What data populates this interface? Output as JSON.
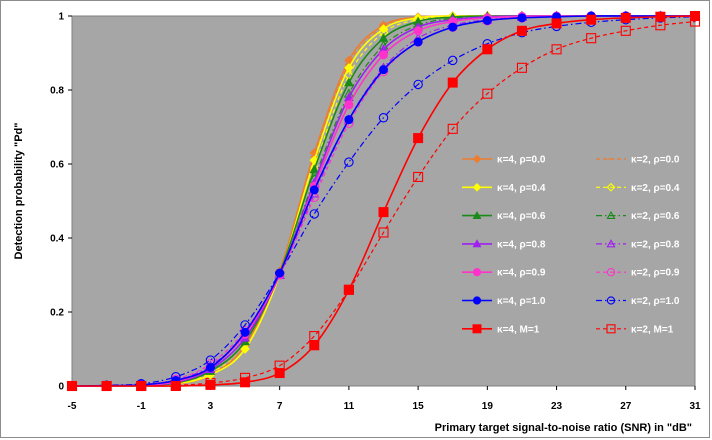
{
  "chart_data": {
    "type": "line",
    "xlabel": "Primary target signal-to-noise  ratio (SNR) in \"dB\"",
    "ylabel": "Detection probability \"Pd\"",
    "xlim": [
      -5,
      31
    ],
    "ylim": [
      0,
      1
    ],
    "xticks": [
      "-5",
      "-1",
      "3",
      "7",
      "11",
      "15",
      "19",
      "23",
      "27",
      "31"
    ],
    "yticks": [
      "0",
      "0.2",
      "0.4",
      "0.6",
      "0.8",
      "1"
    ],
    "grid": false,
    "plot_background": "#a6a6a6",
    "legend_placement": "right",
    "x": [
      -5,
      -3,
      -1,
      1,
      3,
      5,
      7,
      9,
      11,
      13,
      15,
      17,
      19,
      21,
      23,
      25,
      27,
      29,
      31
    ],
    "series": [
      {
        "name": "κ=4, ρ=0.0",
        "color": "#ed7d31",
        "marker": "diamond",
        "filled": true,
        "dash": "solid",
        "values": [
          0,
          0,
          0.001,
          0.005,
          0.03,
          0.11,
          0.31,
          0.63,
          0.88,
          0.975,
          0.997,
          1,
          1,
          1,
          1,
          1,
          1,
          1,
          1
        ]
      },
      {
        "name": "κ=2, ρ=0.0",
        "color": "#ed7d31",
        "marker": "line",
        "filled": false,
        "dash": "dash",
        "values": [
          0,
          0,
          0.001,
          0.005,
          0.03,
          0.11,
          0.31,
          0.62,
          0.87,
          0.97,
          0.996,
          1,
          1,
          1,
          1,
          1,
          1,
          1,
          1
        ]
      },
      {
        "name": "κ=4, ρ=0.4",
        "color": "#ffff00",
        "marker": "diamond",
        "filled": true,
        "dash": "solid",
        "values": [
          0,
          0,
          0.001,
          0.006,
          0.03,
          0.1,
          0.3,
          0.61,
          0.86,
          0.965,
          0.995,
          1,
          1,
          1,
          1,
          1,
          1,
          1,
          1
        ]
      },
      {
        "name": "κ=2, ρ=0.4",
        "color": "#ffff00",
        "marker": "diamond",
        "filled": false,
        "dash": "dash",
        "values": [
          0,
          0,
          0.002,
          0.008,
          0.035,
          0.11,
          0.3,
          0.59,
          0.84,
          0.955,
          0.99,
          0.998,
          1,
          1,
          1,
          1,
          1,
          1,
          1
        ]
      },
      {
        "name": "κ=4, ρ=0.6",
        "color": "#1a8a1a",
        "marker": "triangle",
        "filled": true,
        "dash": "solid",
        "values": [
          0,
          0,
          0.001,
          0.008,
          0.04,
          0.12,
          0.305,
          0.585,
          0.82,
          0.94,
          0.985,
          0.997,
          1,
          1,
          1,
          1,
          1,
          1,
          1
        ]
      },
      {
        "name": "κ=2, ρ=0.6",
        "color": "#1a8a1a",
        "marker": "triangle",
        "filled": false,
        "dash": "dashdot",
        "values": [
          0,
          0,
          0.002,
          0.01,
          0.045,
          0.13,
          0.3,
          0.56,
          0.79,
          0.92,
          0.975,
          0.994,
          0.999,
          1,
          1,
          1,
          1,
          1,
          1
        ]
      },
      {
        "name": "κ=4, ρ=0.8",
        "color": "#a020f0",
        "marker": "triangle",
        "filled": true,
        "dash": "solid",
        "values": [
          0,
          0,
          0.002,
          0.01,
          0.045,
          0.13,
          0.3,
          0.55,
          0.78,
          0.91,
          0.97,
          0.99,
          0.998,
          1,
          1,
          1,
          1,
          1,
          1
        ]
      },
      {
        "name": "κ=2, ρ=0.8",
        "color": "#a020f0",
        "marker": "triangle",
        "filled": false,
        "dash": "dashdot",
        "values": [
          0,
          0.001,
          0.003,
          0.015,
          0.055,
          0.14,
          0.3,
          0.52,
          0.72,
          0.86,
          0.94,
          0.975,
          0.99,
          0.997,
          1,
          1,
          1,
          1,
          1
        ]
      },
      {
        "name": "κ=4, ρ=0.9",
        "color": "#ff33cc",
        "marker": "circle",
        "filled": true,
        "dash": "solid",
        "values": [
          0,
          0,
          0.002,
          0.012,
          0.05,
          0.14,
          0.3,
          0.54,
          0.76,
          0.895,
          0.96,
          0.985,
          0.995,
          0.999,
          1,
          1,
          1,
          1,
          1
        ]
      },
      {
        "name": "κ=2, ρ=0.9",
        "color": "#ff33cc",
        "marker": "circle",
        "filled": false,
        "dash": "dash",
        "values": [
          0,
          0.001,
          0.004,
          0.018,
          0.06,
          0.15,
          0.3,
          0.51,
          0.71,
          0.85,
          0.93,
          0.97,
          0.987,
          0.995,
          0.998,
          1,
          1,
          1,
          1
        ]
      },
      {
        "name": "κ=4, ρ=1.0",
        "color": "#0000ff",
        "marker": "circle",
        "filled": true,
        "dash": "solid",
        "values": [
          0,
          0.001,
          0.003,
          0.015,
          0.05,
          0.145,
          0.305,
          0.53,
          0.72,
          0.855,
          0.93,
          0.97,
          0.988,
          0.995,
          0.998,
          1,
          1,
          1,
          1
        ]
      },
      {
        "name": "κ=2, ρ=1.0",
        "color": "#0000ff",
        "marker": "circle",
        "filled": false,
        "dash": "dashdot",
        "values": [
          0,
          0.002,
          0.006,
          0.025,
          0.07,
          0.165,
          0.305,
          0.465,
          0.605,
          0.725,
          0.815,
          0.88,
          0.925,
          0.955,
          0.972,
          0.983,
          0.99,
          0.995,
          0.998
        ]
      },
      {
        "name": "κ=4, M=1",
        "color": "#ff0000",
        "marker": "square",
        "filled": true,
        "dash": "solid",
        "values": [
          0,
          0,
          0,
          0,
          0.003,
          0.01,
          0.035,
          0.11,
          0.26,
          0.47,
          0.67,
          0.82,
          0.91,
          0.96,
          0.98,
          0.99,
          0.995,
          0.998,
          1
        ]
      },
      {
        "name": "κ=2, M=1",
        "color": "#ff0000",
        "marker": "square",
        "filled": false,
        "dash": "dash",
        "values": [
          0,
          0,
          0,
          0.002,
          0.008,
          0.022,
          0.055,
          0.135,
          0.26,
          0.415,
          0.565,
          0.695,
          0.79,
          0.86,
          0.91,
          0.94,
          0.96,
          0.975,
          0.985
        ]
      }
    ]
  }
}
